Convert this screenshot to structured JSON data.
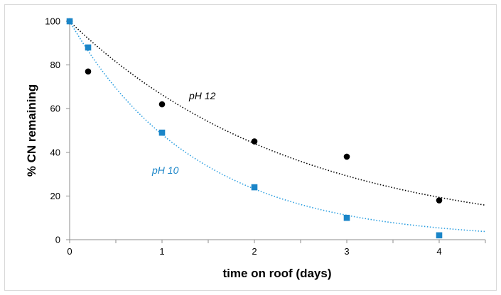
{
  "chart_data": {
    "type": "scatter",
    "xlabel": "time on roof (days)",
    "ylabel": "% CN remaining",
    "xlim": [
      0,
      4.5
    ],
    "ylim": [
      0,
      100
    ],
    "x_ticks": [
      "0",
      "1",
      "2",
      "3",
      "4"
    ],
    "y_ticks": [
      "0",
      "20",
      "40",
      "60",
      "80",
      "100"
    ],
    "grid": false,
    "series": [
      {
        "name": "pH 12",
        "marker": "circle",
        "color": "#000000",
        "trend_color": "#000000",
        "trend_decay_rate": 0.41,
        "x": [
          0,
          0.2,
          1,
          2,
          3,
          4
        ],
        "y": [
          100,
          77,
          62,
          45,
          38,
          18
        ]
      },
      {
        "name": "pH 10",
        "marker": "square",
        "color": "#1a85c8",
        "trend_color": "#2a9ee0",
        "trend_decay_rate": 0.73,
        "x": [
          0,
          0.2,
          1,
          2,
          3,
          4
        ],
        "y": [
          100,
          88,
          49,
          24,
          10,
          2
        ]
      }
    ]
  }
}
